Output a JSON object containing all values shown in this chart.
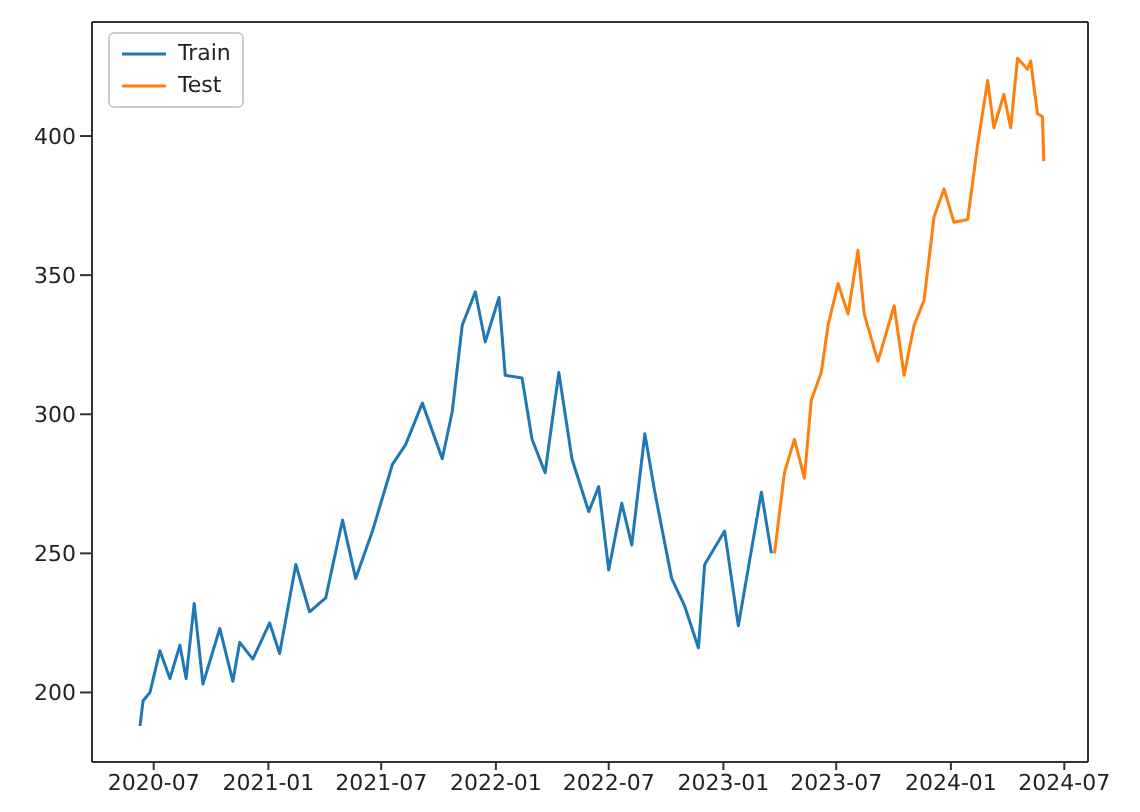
{
  "chart_data": {
    "type": "line",
    "xlim": [
      "2020-03-24",
      "2024-08-08"
    ],
    "xticks": [
      "2020-07",
      "2021-01",
      "2021-07",
      "2022-01",
      "2022-07",
      "2023-01",
      "2023-07",
      "2024-01",
      "2024-07"
    ],
    "ylim": [
      175,
      441
    ],
    "yticks": [
      200,
      250,
      300,
      350,
      400
    ],
    "legend": "top left",
    "marker": "none",
    "line_style": "solid",
    "series": [
      {
        "name": "Train",
        "color": "#1f77b4",
        "x": [
          "2020-06-09",
          "2020-06-14",
          "2020-06-25",
          "2020-07-11",
          "2020-07-27",
          "2020-08-12",
          "2020-08-22",
          "2020-09-04",
          "2020-09-18",
          "2020-10-15",
          "2020-11-05",
          "2020-11-16",
          "2020-12-07",
          "2021-01-03",
          "2021-01-19",
          "2021-02-14",
          "2021-03-08",
          "2021-04-03",
          "2021-04-30",
          "2021-05-21",
          "2021-06-17",
          "2021-07-19",
          "2021-08-09",
          "2021-09-05",
          "2021-10-07",
          "2021-10-23",
          "2021-11-08",
          "2021-11-29",
          "2021-12-15",
          "2022-01-06",
          "2022-01-16",
          "2022-02-12",
          "2022-02-28",
          "2022-03-21",
          "2022-04-12",
          "2022-05-03",
          "2022-05-30",
          "2022-06-15",
          "2022-07-01",
          "2022-07-22",
          "2022-08-07",
          "2022-08-28",
          "2022-09-13",
          "2022-10-10",
          "2022-10-31",
          "2022-11-22",
          "2022-12-02",
          "2023-01-03",
          "2023-01-25",
          "2023-03-03",
          "2023-03-19"
        ],
        "values": [
          188,
          197,
          200,
          215,
          205,
          217,
          205,
          232,
          203,
          223,
          204,
          218,
          212,
          225,
          214,
          246,
          229,
          234,
          262,
          241,
          258,
          282,
          289,
          304,
          284,
          301,
          332,
          344,
          326,
          342,
          314,
          313,
          291,
          279,
          315,
          284,
          265,
          274,
          244,
          268,
          253,
          293,
          272,
          241,
          231,
          216,
          246,
          258,
          224,
          272,
          250
        ]
      },
      {
        "name": "Test",
        "color": "#ff7f0e",
        "x": [
          "2023-03-24",
          "2023-04-09",
          "2023-04-25",
          "2023-05-11",
          "2023-05-22",
          "2023-06-07",
          "2023-06-18",
          "2023-07-04",
          "2023-07-20",
          "2023-08-05",
          "2023-08-15",
          "2023-09-06",
          "2023-10-02",
          "2023-10-18",
          "2023-11-03",
          "2023-11-19",
          "2023-12-05",
          "2023-12-21",
          "2024-01-06",
          "2024-01-28",
          "2024-02-13",
          "2024-02-29",
          "2024-03-10",
          "2024-03-26",
          "2024-04-06",
          "2024-04-17",
          "2024-05-03",
          "2024-05-08",
          "2024-05-19",
          "2024-05-27",
          "2024-05-29"
        ],
        "values": [
          250,
          279,
          291,
          277,
          305,
          315,
          332,
          347,
          336,
          359,
          336,
          319,
          339,
          314,
          332,
          341,
          371,
          381,
          369,
          370,
          397,
          420,
          403,
          415,
          403,
          428,
          424,
          427,
          408,
          407,
          391
        ]
      }
    ]
  }
}
